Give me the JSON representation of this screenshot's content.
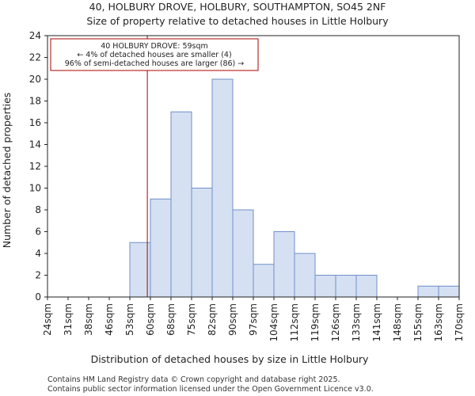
{
  "chart_data": {
    "type": "bar",
    "title": "40, HOLBURY DROVE, HOLBURY, SOUTHAMPTON, SO45 2NF",
    "subtitle": "Size of property relative to detached houses in Little Holbury",
    "xlabel": "Distribution of detached houses by size in Little Holbury",
    "ylabel": "Number of detached properties",
    "ylim": [
      0,
      24
    ],
    "yticks": [
      0,
      2,
      4,
      6,
      8,
      10,
      12,
      14,
      16,
      18,
      20,
      22,
      24
    ],
    "bin_edges": [
      "24sqm",
      "31sqm",
      "38sqm",
      "46sqm",
      "53sqm",
      "60sqm",
      "68sqm",
      "75sqm",
      "82sqm",
      "90sqm",
      "97sqm",
      "104sqm",
      "112sqm",
      "119sqm",
      "126sqm",
      "133sqm",
      "141sqm",
      "148sqm",
      "155sqm",
      "163sqm",
      "170sqm"
    ],
    "values": [
      0,
      0,
      0,
      0,
      5,
      9,
      17,
      10,
      20,
      8,
      3,
      6,
      4,
      2,
      2,
      2,
      0,
      0,
      1,
      1
    ],
    "bar_color": "#d6e0f3",
    "bar_edge_color": "#6f8fc8",
    "marker": {
      "value_sqm": 59,
      "bin_position": 4.85,
      "color": "#aa0000"
    },
    "annotation": {
      "lines": [
        "40 HOLBURY DROVE: 59sqm",
        "← 4% of detached houses are smaller (4)",
        "96% of semi-detached houses are larger (86) →"
      ],
      "border_color": "#aa0000"
    },
    "grid": false,
    "legend": "none"
  },
  "footer": {
    "line1": "Contains HM Land Registry data © Crown copyright and database right 2025.",
    "line2": "Contains public sector information licensed under the Open Government Licence v3.0."
  }
}
